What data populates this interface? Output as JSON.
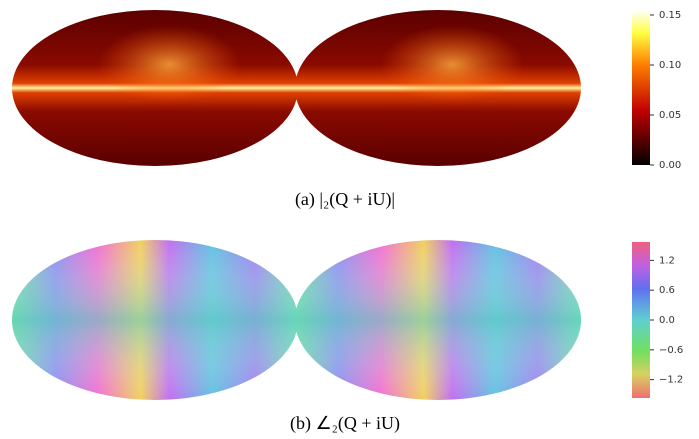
{
  "panels": [
    {
      "caption": "(a)  |₂(Q + iU)|",
      "colorbar": {
        "lim": [
          0,
          0.155
        ],
        "ticks": [
          {
            "value": 0,
            "label": "0.00"
          },
          {
            "value": 0.05,
            "label": "0.05"
          },
          {
            "value": 0.1,
            "label": "0.10"
          },
          {
            "value": 0.15,
            "label": "0.15"
          }
        ]
      }
    },
    {
      "caption": "(b)  ∠₂(Q + iU)",
      "colorbar": {
        "lim": [
          -1.57,
          1.57
        ],
        "ticks": [
          {
            "value": -1.2,
            "label": "−1.2"
          },
          {
            "value": -0.6,
            "label": "−0.6"
          },
          {
            "value": 0,
            "label": "0.0"
          },
          0.6,
          1.2
        ]
      }
    }
  ]
}
